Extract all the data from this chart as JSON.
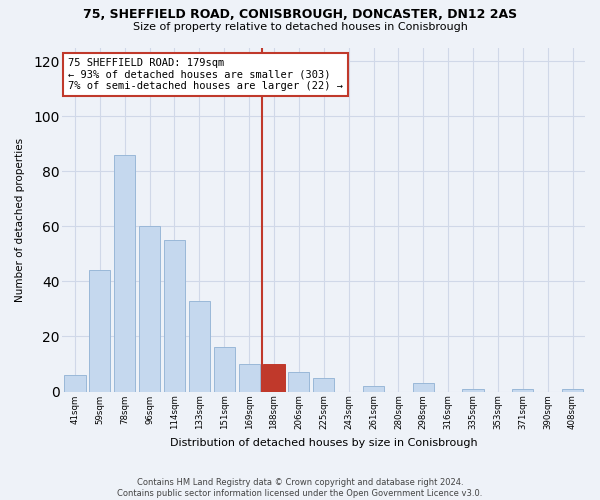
{
  "title1": "75, SHEFFIELD ROAD, CONISBROUGH, DONCASTER, DN12 2AS",
  "title2": "Size of property relative to detached houses in Conisbrough",
  "xlabel": "Distribution of detached houses by size in Conisbrough",
  "ylabel": "Number of detached properties",
  "footnote1": "Contains HM Land Registry data © Crown copyright and database right 2024.",
  "footnote2": "Contains public sector information licensed under the Open Government Licence v3.0.",
  "annotation_line1": "75 SHEFFIELD ROAD: 179sqm",
  "annotation_line2": "← 93% of detached houses are smaller (303)",
  "annotation_line3": "7% of semi-detached houses are larger (22) →",
  "categories": [
    "41sqm",
    "59sqm",
    "78sqm",
    "96sqm",
    "114sqm",
    "133sqm",
    "151sqm",
    "169sqm",
    "188sqm",
    "206sqm",
    "225sqm",
    "243sqm",
    "261sqm",
    "280sqm",
    "298sqm",
    "316sqm",
    "335sqm",
    "353sqm",
    "371sqm",
    "390sqm",
    "408sqm"
  ],
  "values": [
    6,
    44,
    86,
    60,
    55,
    33,
    16,
    10,
    10,
    7,
    5,
    0,
    2,
    0,
    3,
    0,
    1,
    0,
    1,
    0,
    1
  ],
  "bar_color": "#c5d8ee",
  "bar_edge_color": "#9ab8d8",
  "highlight_bar_color": "#c0392b",
  "highlight_index": 8,
  "vline_x": 7.5,
  "vline_color": "#c0392b",
  "annotation_box_color": "#c0392b",
  "ylim": [
    0,
    125
  ],
  "yticks": [
    0,
    20,
    40,
    60,
    80,
    100,
    120
  ],
  "grid_color": "#d0d8e8",
  "bg_color": "#eef2f8"
}
